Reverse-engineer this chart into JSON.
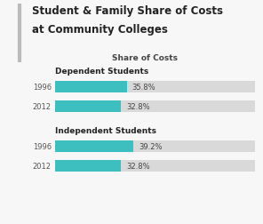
{
  "title_line1": "Student & Family Share of Costs",
  "title_line2": "at Community Colleges",
  "subtitle": "Share of Costs",
  "group1_label": "Dependent Students",
  "group2_label": "Independent Students",
  "years": [
    "1996",
    "2012",
    "1996",
    "2012"
  ],
  "values": [
    35.8,
    32.8,
    39.2,
    32.8
  ],
  "labels": [
    "35.8%",
    "32.8%",
    "39.2%",
    "32.8%"
  ],
  "max_val": 100,
  "bar_color": "#3dbfbf",
  "bg_bar_color": "#d9d9d9",
  "title_color": "#222222",
  "label_color": "#444444",
  "subtitle_color": "#444444",
  "group_label_color": "#222222",
  "year_color": "#555555",
  "accent_line_color": "#bbbbbb",
  "background_color": "#f7f7f7",
  "font_size_title": 8.5,
  "font_size_subtitle": 6.5,
  "font_size_group": 6.5,
  "font_size_year": 6.0,
  "font_size_pct": 6.0
}
